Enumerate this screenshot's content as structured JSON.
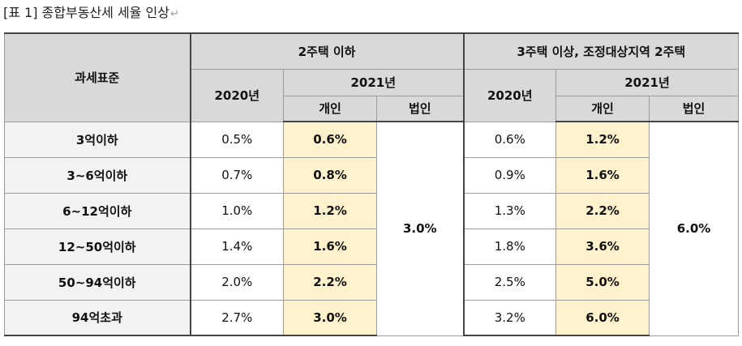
{
  "caption": {
    "text": "[표 1] 종합부동산세 세율 인상",
    "paragraph_mark": "↵"
  },
  "table": {
    "header": {
      "base_label": "과세표준",
      "group1_label": "2주택 이하",
      "group2_label": "3주택 이상, 조정대상지역 2주택",
      "year_2020": "2020년",
      "year_2021": "2021년",
      "individual": "개인",
      "corporate": "법인"
    },
    "rows": [
      {
        "label": "3억이하",
        "g1_2020": "0.5%",
        "g1_indiv": "0.6%",
        "g2_2020": "0.6%",
        "g2_indiv": "1.2%"
      },
      {
        "label": "3~6억이하",
        "g1_2020": "0.7%",
        "g1_indiv": "0.8%",
        "g2_2020": "0.9%",
        "g2_indiv": "1.6%"
      },
      {
        "label": "6~12억이하",
        "g1_2020": "1.0%",
        "g1_indiv": "1.2%",
        "g2_2020": "1.3%",
        "g2_indiv": "2.2%"
      },
      {
        "label": "12~50억이하",
        "g1_2020": "1.4%",
        "g1_indiv": "1.6%",
        "g2_2020": "1.8%",
        "g2_indiv": "3.6%"
      },
      {
        "label": "50~94억이하",
        "g1_2020": "2.0%",
        "g1_indiv": "2.2%",
        "g2_2020": "2.5%",
        "g2_indiv": "5.0%"
      },
      {
        "label": "94억초과",
        "g1_2020": "2.7%",
        "g1_indiv": "3.0%",
        "g2_2020": "3.2%",
        "g2_indiv": "6.0%"
      }
    ],
    "g1_corporate": "3.0%",
    "g2_corporate": "6.0%"
  },
  "colors": {
    "header_bg": "#d9d9d9",
    "row_label_bg": "#f2f2f2",
    "highlight_bg": "#fff2cc"
  }
}
